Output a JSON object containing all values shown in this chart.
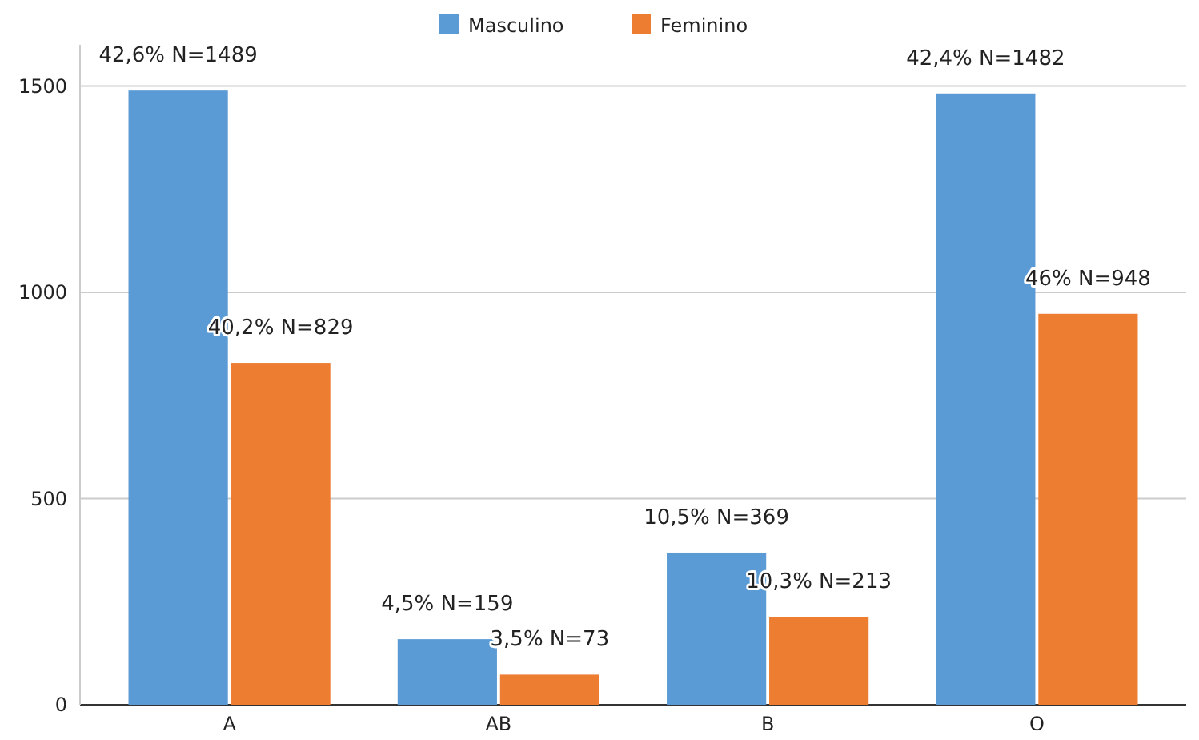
{
  "chart_data": {
    "type": "bar",
    "categories": [
      "A",
      "AB",
      "B",
      "O"
    ],
    "series": [
      {
        "name": "Masculino",
        "color": "#5b9bd5",
        "values": [
          1489,
          159,
          369,
          1482
        ],
        "value_labels": [
          "42,6% N=1489",
          "4,5% N=159",
          "10,5% N=369",
          "42,4% N=1482"
        ]
      },
      {
        "name": "Feminino",
        "color": "#ed7d31",
        "values": [
          829,
          73,
          213,
          948
        ],
        "value_labels": [
          "40,2% N=829",
          "3,5% N=73",
          "10,3% N=213",
          "46% N=948"
        ]
      }
    ],
    "ylim": [
      0,
      1600
    ],
    "yticks": [
      0,
      500,
      1000,
      1500
    ],
    "grid": "y",
    "legend": "top"
  }
}
